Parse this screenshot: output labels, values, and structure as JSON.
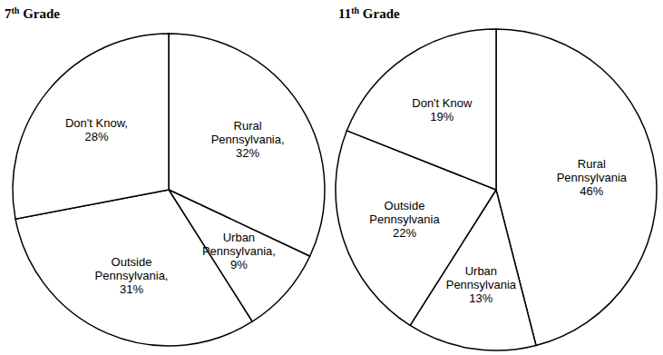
{
  "chart_data": [
    {
      "type": "pie",
      "title": "7th Grade",
      "categories": [
        "Rural Pennsylvania,",
        "Urban Pennsylvania,",
        "Outside Pennsylvania,",
        "Don't Know,"
      ],
      "values": [
        32,
        9,
        31,
        28
      ],
      "value_labels": [
        "32%",
        "9%",
        "31%",
        "28%"
      ],
      "colors": [
        "#ffffff",
        "#ffffff",
        "#ffffff",
        "#ffffff"
      ],
      "data_labels": true
    },
    {
      "type": "pie",
      "title": "11th Grade",
      "categories": [
        "Rural Pennsylvania",
        "Urban Pennsylvania",
        "Outside Pennsylvania",
        "Don't Know"
      ],
      "values": [
        46,
        13,
        22,
        19
      ],
      "value_labels": [
        "46%",
        "13%",
        "22%",
        "19%"
      ],
      "colors": [
        "#ffffff",
        "#ffffff",
        "#ffffff",
        "#ffffff"
      ],
      "data_labels": true
    }
  ]
}
